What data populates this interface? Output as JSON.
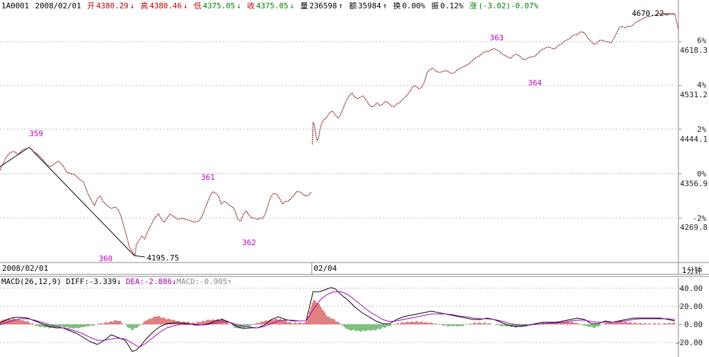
{
  "header": {
    "code": "1A0001",
    "date": "2008/02/01",
    "open_label": "开",
    "open": "4380.29",
    "high_label": "高",
    "high": "4380.46",
    "low_label": "低",
    "low": "4375.05",
    "close_label": "收",
    "close": "4375.05",
    "volume_label": "量",
    "volume": "236598",
    "amount_label": "额",
    "amount": "35984",
    "turnover_label": "换",
    "turnover": "0.00%",
    "amplitude_label": "振",
    "amplitude": "0.12%",
    "change_label": "涨",
    "change": "(-3.02)-0.07%"
  },
  "price_axis": {
    "labels": [
      "6%",
      "4618.3",
      "4%",
      "4531.2",
      "2%",
      "4444.1",
      "0%",
      "4356.9",
      "-2%",
      "4269.8"
    ]
  },
  "annotations": {
    "high_value": "4670.22",
    "low_value": "4195.75",
    "waves": [
      "359",
      "360",
      "361",
      "362",
      "363",
      "364"
    ]
  },
  "date_bar": {
    "start": "2008/02/01",
    "mid": "02/04",
    "period": "1分钟"
  },
  "macd": {
    "title": "MACD(26,12,9)",
    "diff_label": "DIFF:",
    "diff": "-3.339",
    "dea_label": "DEA:",
    "dea": "-2.886",
    "macd_label": "MACD:",
    "macd": "-0.905",
    "axis": [
      "40.00",
      "20.00",
      "0.00",
      "-20.00"
    ]
  },
  "colors": {
    "up": "#c00000",
    "down": "#008000",
    "grid": "#cccccc",
    "line_dea": "#a000c0",
    "wave_label": "#c000c0"
  }
}
